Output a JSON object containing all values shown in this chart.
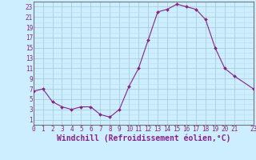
{
  "x": [
    0,
    1,
    2,
    3,
    4,
    5,
    6,
    7,
    8,
    9,
    10,
    11,
    12,
    13,
    14,
    15,
    16,
    17,
    18,
    19,
    20,
    21,
    23
  ],
  "y": [
    6.5,
    7.0,
    4.5,
    3.5,
    3.0,
    3.5,
    3.5,
    2.0,
    1.5,
    3.0,
    7.5,
    11.0,
    16.5,
    22.0,
    22.5,
    23.5,
    23.0,
    22.5,
    20.5,
    15.0,
    11.0,
    9.5,
    7.0
  ],
  "xlabel": "Windchill (Refroidissement éolien,°C)",
  "xlim": [
    0,
    23
  ],
  "ylim": [
    0,
    24
  ],
  "yticks": [
    1,
    3,
    5,
    7,
    9,
    11,
    13,
    15,
    17,
    19,
    21,
    23
  ],
  "xticks": [
    0,
    1,
    2,
    3,
    4,
    5,
    6,
    7,
    8,
    9,
    10,
    11,
    12,
    13,
    14,
    15,
    16,
    17,
    18,
    19,
    20,
    21,
    23
  ],
  "xtick_labels": [
    "0",
    "1",
    "2",
    "3",
    "4",
    "5",
    "6",
    "7",
    "8",
    "9",
    "10",
    "11",
    "12",
    "13",
    "14",
    "15",
    "16",
    "17",
    "18",
    "19",
    "20",
    "21",
    "23"
  ],
  "line_color": "#882288",
  "marker_color": "#882288",
  "bg_color": "#CCEEFF",
  "grid_major_color": "#AACCDD",
  "grid_minor_color": "#BBDDEE",
  "border_color": "#777777",
  "tick_label_color": "#882288",
  "xlabel_color": "#882288",
  "font_size": 5.5,
  "xlabel_font_size": 7.0
}
